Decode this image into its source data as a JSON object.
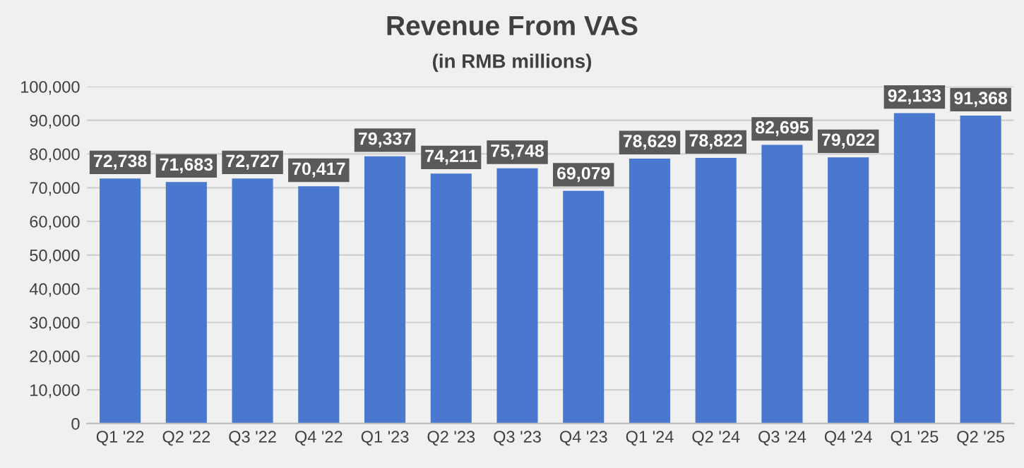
{
  "chart_data": {
    "type": "bar",
    "title": "Revenue From VAS",
    "subtitle": "(in RMB millions)",
    "categories": [
      "Q1 '22",
      "Q2 '22",
      "Q3 '22",
      "Q4 '22",
      "Q1 '23",
      "Q2 '23",
      "Q3 '23",
      "Q4 '23",
      "Q1 '24",
      "Q2 '24",
      "Q3 '24",
      "Q4 '24",
      "Q1 '25",
      "Q2 '25"
    ],
    "values": [
      72738,
      71683,
      72727,
      70417,
      79337,
      74211,
      75748,
      69079,
      78629,
      78822,
      82695,
      79022,
      92133,
      91368
    ],
    "value_labels": [
      "72,738",
      "71,683",
      "72,727",
      "70,417",
      "79,337",
      "74,211",
      "75,748",
      "69,079",
      "78,629",
      "78,822",
      "82,695",
      "79,022",
      "92,133",
      "91,368"
    ],
    "color": "#4a78cf",
    "ylim": [
      0,
      100000
    ],
    "yticks": [
      {
        "value": 0,
        "label": "0"
      },
      {
        "value": 10000,
        "label": "10,000"
      },
      {
        "value": 20000,
        "label": "20,000"
      },
      {
        "value": 30000,
        "label": "30,000"
      },
      {
        "value": 40000,
        "label": "40,000"
      },
      {
        "value": 50000,
        "label": "50,000"
      },
      {
        "value": 60000,
        "label": "60,000"
      },
      {
        "value": 70000,
        "label": "70,000"
      },
      {
        "value": 80000,
        "label": "80,000"
      },
      {
        "value": 90000,
        "label": "90,000"
      },
      {
        "value": 100000,
        "label": "100,000"
      }
    ],
    "grid": "y",
    "legend": false
  }
}
